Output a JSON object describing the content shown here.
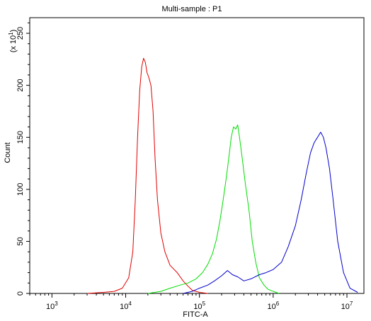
{
  "chart_data": {
    "type": "line",
    "title": "Multi-sample : P1",
    "xlabel": "FITC-A",
    "ylabel": "Count",
    "y_multiplier_label": "(x 10",
    "y_multiplier_exp": "1",
    "y_multiplier_close": ")",
    "x_scale": "log",
    "xlim": [
      500,
      17000000
    ],
    "ylim": [
      0,
      265
    ],
    "x_ticks": [
      {
        "value": 1000,
        "base": "10",
        "exp": "3"
      },
      {
        "value": 10000,
        "base": "10",
        "exp": "4"
      },
      {
        "value": 100000,
        "base": "10",
        "exp": "5"
      },
      {
        "value": 1000000,
        "base": "10",
        "exp": "6"
      },
      {
        "value": 10000000,
        "base": "10",
        "exp": "7"
      }
    ],
    "y_ticks": [
      0,
      50,
      100,
      150,
      200,
      250
    ],
    "grid": false,
    "legend": "none",
    "series": [
      {
        "color": "#e00000",
        "x": [
          3000,
          5000,
          7000,
          9000,
          11000,
          12500,
          13500,
          14500,
          15500,
          16500,
          17500,
          18500,
          19500,
          20500,
          22000,
          23500,
          25000,
          27000,
          30000,
          34000,
          40000,
          50000,
          60000,
          70000,
          80000,
          100000,
          130000
        ],
        "y": [
          0,
          1,
          2,
          5,
          15,
          40,
          90,
          150,
          195,
          218,
          226,
          222,
          212,
          208,
          200,
          175,
          130,
          90,
          58,
          40,
          27,
          20,
          12,
          7,
          3,
          1,
          0
        ]
      },
      {
        "color": "#00dd00",
        "x": [
          20000,
          30000,
          40000,
          55000,
          70000,
          90000,
          110000,
          130000,
          150000,
          170000,
          190000,
          210000,
          230000,
          250000,
          270000,
          290000,
          310000,
          330000,
          350000,
          380000,
          420000,
          470000,
          520000,
          580000,
          650000,
          750000,
          850000,
          1000000,
          1200000
        ],
        "y": [
          0,
          2,
          5,
          8,
          10,
          14,
          20,
          28,
          38,
          52,
          70,
          90,
          110,
          130,
          150,
          160,
          158,
          162,
          150,
          130,
          105,
          80,
          50,
          30,
          15,
          8,
          4,
          2,
          0
        ]
      },
      {
        "color": "#0000cc",
        "x": [
          60000,
          80000,
          100000,
          130000,
          160000,
          200000,
          240000,
          280000,
          330000,
          400000,
          500000,
          650000,
          800000,
          1000000,
          1300000,
          1600000,
          2000000,
          2400000,
          2800000,
          3200000,
          3600000,
          4000000,
          4400000,
          4800000,
          5200000,
          5800000,
          6500000,
          7500000,
          9000000,
          11000000,
          14000000
        ],
        "y": [
          0,
          2,
          5,
          8,
          12,
          17,
          22,
          18,
          16,
          12,
          14,
          18,
          20,
          23,
          30,
          45,
          65,
          90,
          115,
          135,
          145,
          150,
          155,
          150,
          140,
          120,
          90,
          50,
          20,
          5,
          1
        ]
      }
    ]
  }
}
